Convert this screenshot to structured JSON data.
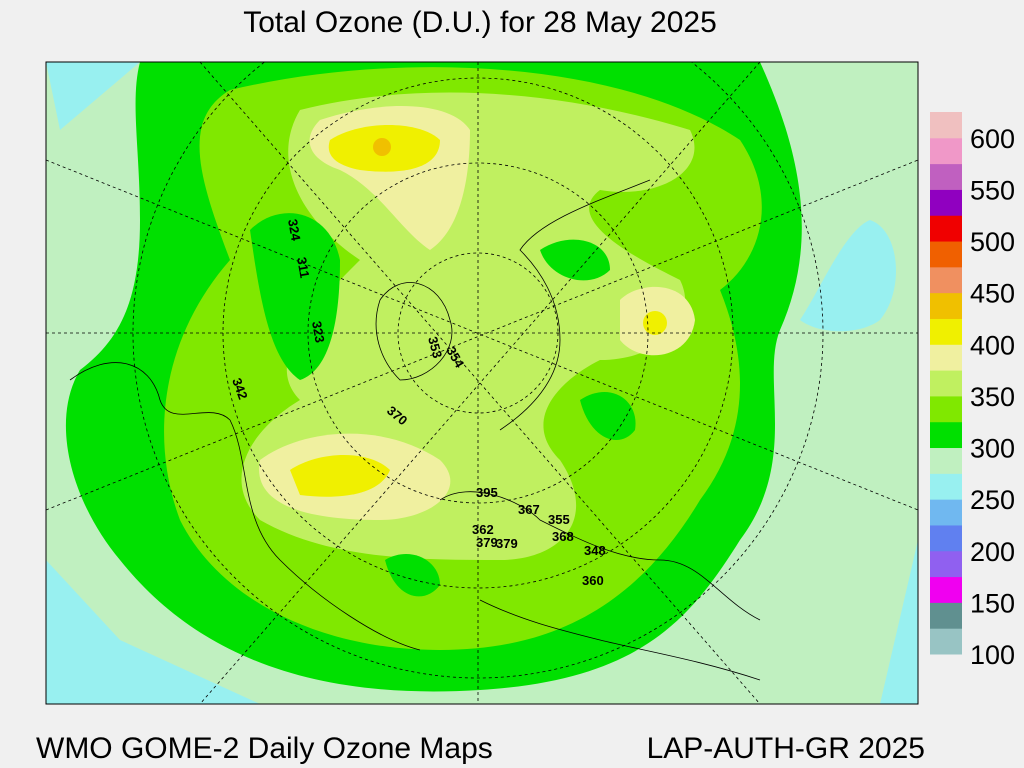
{
  "title": "Total Ozone (D.U.) for 28 May 2025",
  "footer_left": "WMO GOME-2 Daily Ozone Maps",
  "footer_right": "LAP-AUTH-GR 2025",
  "colorbar": {
    "lim": [
      100,
      625
    ],
    "ticks": [
      100,
      150,
      200,
      250,
      300,
      350,
      400,
      450,
      500,
      550,
      600
    ],
    "colors": [
      "#98c4c4",
      "#609090",
      "#f000f0",
      "#9060f0",
      "#6080f0",
      "#70b8f0",
      "#98f0f0",
      "#c0f0c0",
      "#00e000",
      "#80e800",
      "#c0f060",
      "#f0f0a0",
      "#f0f000",
      "#f0c000",
      "#f09060",
      "#f06000",
      "#f00000",
      "#9000c0",
      "#c060c0",
      "#f098c8",
      "#f0c0c0"
    ]
  },
  "map_labels": [
    "324",
    "311",
    "323",
    "342",
    "353",
    "354",
    "370",
    "395",
    "367",
    "362",
    "379",
    "379",
    "355",
    "368",
    "348",
    "360"
  ]
}
